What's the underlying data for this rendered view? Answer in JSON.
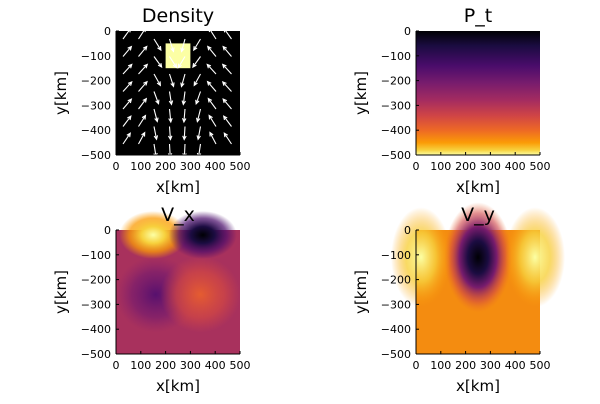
{
  "chart_data": [
    {
      "type": "heatmap",
      "title": "Density",
      "xlabel": "x[km]",
      "ylabel": "y[km]",
      "xlim": [
        0,
        500
      ],
      "ylim": [
        -500,
        0
      ],
      "xticks": [
        "0",
        "100",
        "200",
        "300",
        "400",
        "500"
      ],
      "yticks": [
        "0",
        "-100",
        "-200",
        "-300",
        "-400",
        "-500"
      ],
      "background_value": 0,
      "block": {
        "x": [
          200,
          300
        ],
        "y": [
          -150,
          -50
        ],
        "value": 1
      },
      "colormap": "black-yellow",
      "overlay": "velocity-arrows"
    },
    {
      "type": "heatmap",
      "title": "P_t",
      "xlabel": "x[km]",
      "ylabel": "y[km]",
      "xlim": [
        0,
        500
      ],
      "ylim": [
        -500,
        0
      ],
      "xticks": [
        "0",
        "100",
        "200",
        "300",
        "400",
        "500"
      ],
      "yticks": [
        "0",
        "-100",
        "-200",
        "-300",
        "-400",
        "-500"
      ],
      "field": "lithostatic pressure, increasing linearly with depth",
      "colormap": "inferno"
    },
    {
      "type": "heatmap",
      "title": "V_x",
      "xlabel": "x[km]",
      "ylabel": "y[km]",
      "xlim": [
        0,
        500
      ],
      "ylim": [
        -500,
        0
      ],
      "xticks": [
        "0",
        "100",
        "200",
        "300",
        "400",
        "500"
      ],
      "yticks": [
        "0",
        "-100",
        "-200",
        "-300",
        "-400",
        "-500"
      ],
      "features": [
        {
          "kind": "max",
          "x": 150,
          "y": -20
        },
        {
          "kind": "min",
          "x": 350,
          "y": -20
        },
        {
          "kind": "min",
          "x": 160,
          "y": -260
        },
        {
          "kind": "max",
          "x": 340,
          "y": -260
        }
      ],
      "colormap": "inferno"
    },
    {
      "type": "heatmap",
      "title": "V_y",
      "xlabel": "x[km]",
      "ylabel": "y[km]",
      "xlim": [
        0,
        500
      ],
      "ylim": [
        -500,
        0
      ],
      "xticks": [
        "0",
        "100",
        "200",
        "300",
        "400",
        "500"
      ],
      "yticks": [
        "0",
        "-100",
        "-200",
        "-300",
        "-400",
        "-500"
      ],
      "features": [
        {
          "kind": "min",
          "x": 250,
          "y": -110
        },
        {
          "kind": "max",
          "x": 20,
          "y": -110
        },
        {
          "kind": "max",
          "x": 480,
          "y": -110
        }
      ],
      "colormap": "inferno"
    }
  ],
  "colors": {
    "arrows": "#ffffff",
    "density_background": "#000000",
    "density_block": "#fcffa4"
  }
}
